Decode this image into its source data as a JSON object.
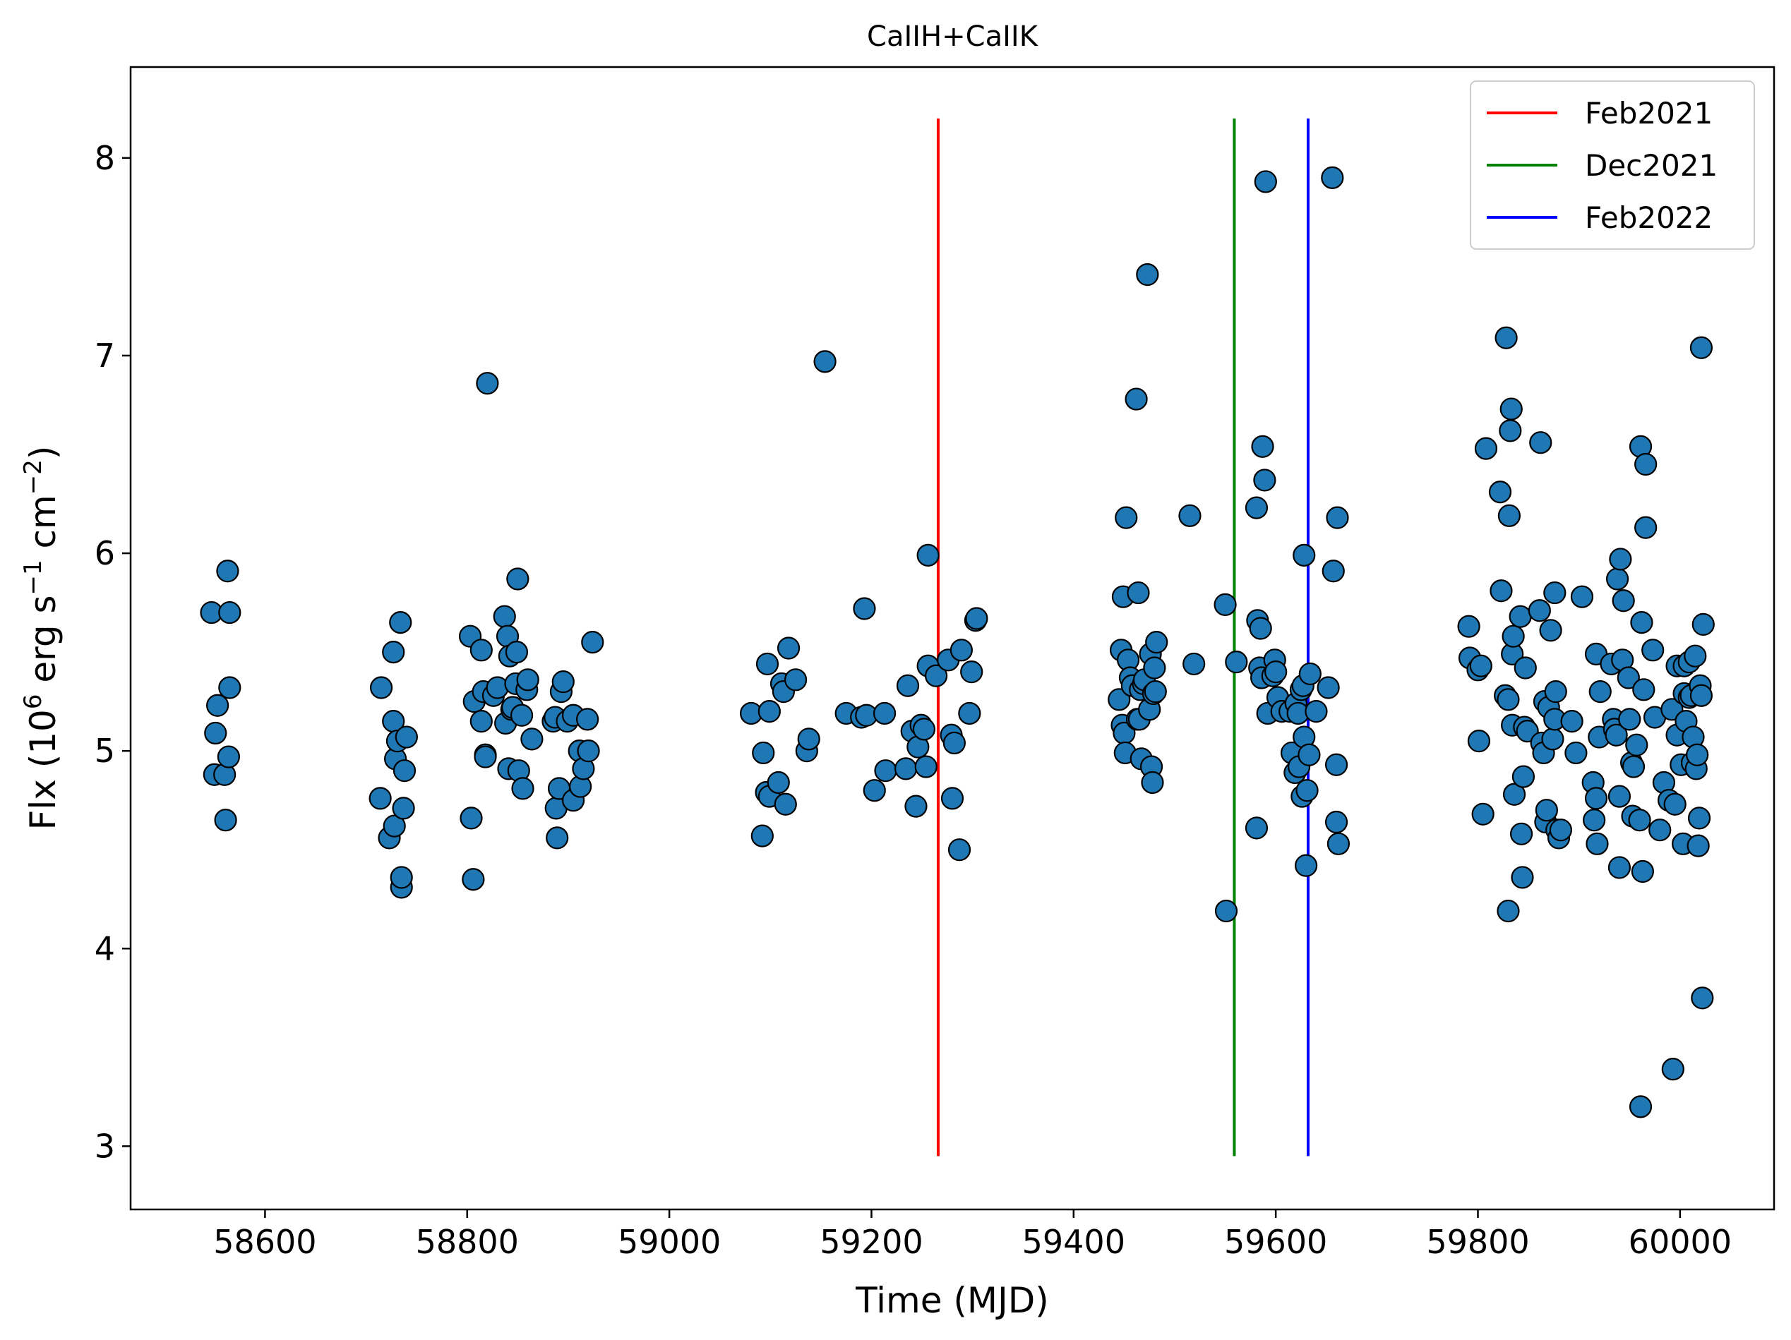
{
  "chart_data": {
    "type": "scatter",
    "title": "CaIIH+CaIIK",
    "xlabel": "Time (MJD)",
    "ylabel_parts": [
      "Flx (10",
      "6",
      " erg s",
      "−1",
      " cm",
      "−2",
      ")"
    ],
    "xlim": [
      58467,
      60093
    ],
    "ylim": [
      2.68,
      8.46
    ],
    "xticks": [
      58600,
      58800,
      59000,
      59200,
      59400,
      59600,
      59800,
      60000
    ],
    "yticks": [
      3,
      4,
      5,
      6,
      7,
      8
    ],
    "xtick_labels": [
      "58600",
      "58800",
      "59000",
      "59200",
      "59400",
      "59600",
      "59800",
      "60000"
    ],
    "ytick_labels": [
      "3",
      "4",
      "5",
      "6",
      "7",
      "8"
    ],
    "grid": false,
    "legend_position": "top-right",
    "marker_color": "#1f77b4",
    "vlines": [
      {
        "name": "Feb2021",
        "x": 59266,
        "ymin": 2.95,
        "ymax": 8.2,
        "color": "#ff0000"
      },
      {
        "name": "Dec2021",
        "x": 59559,
        "ymin": 2.95,
        "ymax": 8.2,
        "color": "#008000"
      },
      {
        "name": "Feb2022",
        "x": 59632,
        "ymin": 2.95,
        "ymax": 8.2,
        "color": "#0000ff"
      }
    ],
    "points": [
      [
        58547,
        5.7
      ],
      [
        58550,
        4.88
      ],
      [
        58553,
        5.23
      ],
      [
        58551,
        5.09
      ],
      [
        58560,
        4.88
      ],
      [
        58563,
        5.91
      ],
      [
        58565,
        5.7
      ],
      [
        58565,
        5.32
      ],
      [
        58564,
        4.97
      ],
      [
        58561,
        4.65
      ],
      [
        58715,
        5.32
      ],
      [
        58714,
        4.76
      ],
      [
        58723,
        4.56
      ],
      [
        58727,
        5.5
      ],
      [
        58727,
        5.15
      ],
      [
        58728,
        4.62
      ],
      [
        58729,
        4.96
      ],
      [
        58731,
        5.05
      ],
      [
        58734,
        5.65
      ],
      [
        58735,
        4.31
      ],
      [
        58735,
        4.36
      ],
      [
        58737,
        4.71
      ],
      [
        58738,
        4.9
      ],
      [
        58740,
        5.07
      ],
      [
        58803,
        5.58
      ],
      [
        58804,
        4.66
      ],
      [
        58806,
        4.35
      ],
      [
        58807,
        5.25
      ],
      [
        58814,
        5.51
      ],
      [
        58814,
        5.15
      ],
      [
        58816,
        5.3
      ],
      [
        58818,
        4.98
      ],
      [
        58818,
        4.97
      ],
      [
        58820,
        6.86
      ],
      [
        58826,
        5.28
      ],
      [
        58830,
        5.32
      ],
      [
        58837,
        5.68
      ],
      [
        58838,
        5.14
      ],
      [
        58840,
        5.58
      ],
      [
        58841,
        4.91
      ],
      [
        58842,
        5.48
      ],
      [
        58844,
        5.21
      ],
      [
        58845,
        5.22
      ],
      [
        58848,
        5.34
      ],
      [
        58849,
        5.5
      ],
      [
        58850,
        5.87
      ],
      [
        58851,
        4.9
      ],
      [
        58854,
        5.18
      ],
      [
        58855,
        4.81
      ],
      [
        58859,
        5.31
      ],
      [
        58860,
        5.36
      ],
      [
        58864,
        5.06
      ],
      [
        58885,
        5.15
      ],
      [
        58887,
        5.17
      ],
      [
        58888,
        4.71
      ],
      [
        58889,
        4.56
      ],
      [
        58891,
        4.81
      ],
      [
        58893,
        5.3
      ],
      [
        58895,
        5.35
      ],
      [
        58899,
        5.15
      ],
      [
        58905,
        4.75
      ],
      [
        58905,
        5.18
      ],
      [
        58911,
        5.0
      ],
      [
        58912,
        4.82
      ],
      [
        58915,
        4.91
      ],
      [
        58919,
        5.16
      ],
      [
        58920,
        5.0
      ],
      [
        58924,
        5.55
      ],
      [
        59081,
        5.19
      ],
      [
        59092,
        4.57
      ],
      [
        59093,
        4.99
      ],
      [
        59096,
        4.79
      ],
      [
        59097,
        5.44
      ],
      [
        59099,
        4.77
      ],
      [
        59099,
        5.2
      ],
      [
        59108,
        4.84
      ],
      [
        59111,
        5.34
      ],
      [
        59113,
        5.3
      ],
      [
        59115,
        4.73
      ],
      [
        59118,
        5.52
      ],
      [
        59125,
        5.36
      ],
      [
        59136,
        5.0
      ],
      [
        59138,
        5.06
      ],
      [
        59154,
        6.97
      ],
      [
        59175,
        5.19
      ],
      [
        59190,
        5.17
      ],
      [
        59193,
        5.72
      ],
      [
        59195,
        5.18
      ],
      [
        59203,
        4.8
      ],
      [
        59213,
        5.19
      ],
      [
        59214,
        4.9
      ],
      [
        59234,
        4.91
      ],
      [
        59236,
        5.33
      ],
      [
        59240,
        5.1
      ],
      [
        59244,
        4.72
      ],
      [
        59246,
        5.02
      ],
      [
        59249,
        5.13
      ],
      [
        59252,
        5.11
      ],
      [
        59254,
        4.92
      ],
      [
        59256,
        5.43
      ],
      [
        59256,
        5.99
      ],
      [
        59264,
        5.38
      ],
      [
        59276,
        5.46
      ],
      [
        59279,
        5.08
      ],
      [
        59280,
        4.76
      ],
      [
        59282,
        5.04
      ],
      [
        59287,
        4.5
      ],
      [
        59289,
        5.51
      ],
      [
        59297,
        5.19
      ],
      [
        59299,
        5.4
      ],
      [
        59303,
        5.66
      ],
      [
        59304,
        5.67
      ],
      [
        59445,
        5.26
      ],
      [
        59447,
        5.51
      ],
      [
        59448,
        5.13
      ],
      [
        59449,
        5.78
      ],
      [
        59450,
        5.09
      ],
      [
        59451,
        4.99
      ],
      [
        59452,
        6.18
      ],
      [
        59454,
        5.46
      ],
      [
        59456,
        5.37
      ],
      [
        59458,
        5.33
      ],
      [
        59462,
        6.78
      ],
      [
        59463,
        5.16
      ],
      [
        59464,
        5.8
      ],
      [
        59465,
        5.16
      ],
      [
        59466,
        5.31
      ],
      [
        59467,
        4.96
      ],
      [
        59469,
        5.34
      ],
      [
        59470,
        5.36
      ],
      [
        59473,
        7.41
      ],
      [
        59475,
        5.21
      ],
      [
        59476,
        5.49
      ],
      [
        59477,
        4.92
      ],
      [
        59478,
        4.84
      ],
      [
        59479,
        5.29
      ],
      [
        59480,
        5.42
      ],
      [
        59481,
        5.3
      ],
      [
        59482,
        5.55
      ],
      [
        59515,
        6.19
      ],
      [
        59519,
        5.44
      ],
      [
        59550,
        5.74
      ],
      [
        59551,
        4.19
      ],
      [
        59561,
        5.45
      ],
      [
        59581,
        6.23
      ],
      [
        59581,
        4.61
      ],
      [
        59582,
        5.66
      ],
      [
        59584,
        5.42
      ],
      [
        59585,
        5.62
      ],
      [
        59586,
        5.37
      ],
      [
        59587,
        6.54
      ],
      [
        59589,
        6.37
      ],
      [
        59590,
        7.88
      ],
      [
        59592,
        5.19
      ],
      [
        59597,
        5.38
      ],
      [
        59599,
        5.46
      ],
      [
        59600,
        5.4
      ],
      [
        59602,
        5.27
      ],
      [
        59606,
        5.2
      ],
      [
        59614,
        5.2
      ],
      [
        59616,
        4.99
      ],
      [
        59619,
        4.89
      ],
      [
        59620,
        5.24
      ],
      [
        59622,
        5.19
      ],
      [
        59623,
        4.92
      ],
      [
        59625,
        5.31
      ],
      [
        59626,
        4.77
      ],
      [
        59627,
        5.33
      ],
      [
        59628,
        5.99
      ],
      [
        59628,
        5.07
      ],
      [
        59630,
        4.42
      ],
      [
        59631,
        4.8
      ],
      [
        59633,
        4.98
      ],
      [
        59634,
        5.39
      ],
      [
        59640,
        5.2
      ],
      [
        59652,
        5.32
      ],
      [
        59656,
        7.9
      ],
      [
        59657,
        5.91
      ],
      [
        59660,
        4.64
      ],
      [
        59660,
        4.93
      ],
      [
        59661,
        6.18
      ],
      [
        59662,
        4.53
      ],
      [
        59791,
        5.63
      ],
      [
        59792,
        5.47
      ],
      [
        59800,
        5.41
      ],
      [
        59801,
        5.05
      ],
      [
        59803,
        5.43
      ],
      [
        59805,
        4.68
      ],
      [
        59808,
        6.53
      ],
      [
        59822,
        6.31
      ],
      [
        59823,
        5.81
      ],
      [
        59827,
        5.28
      ],
      [
        59828,
        7.09
      ],
      [
        59830,
        4.19
      ],
      [
        59830,
        5.26
      ],
      [
        59831,
        6.19
      ],
      [
        59832,
        6.62
      ],
      [
        59833,
        6.73
      ],
      [
        59834,
        5.49
      ],
      [
        59834,
        5.13
      ],
      [
        59835,
        5.58
      ],
      [
        59836,
        4.78
      ],
      [
        59842,
        5.68
      ],
      [
        59843,
        4.58
      ],
      [
        59844,
        4.36
      ],
      [
        59845,
        4.87
      ],
      [
        59846,
        5.12
      ],
      [
        59847,
        5.42
      ],
      [
        59849,
        5.1
      ],
      [
        59861,
        5.71
      ],
      [
        59862,
        6.56
      ],
      [
        59863,
        5.04
      ],
      [
        59865,
        4.99
      ],
      [
        59866,
        5.25
      ],
      [
        59867,
        4.64
      ],
      [
        59868,
        4.7
      ],
      [
        59870,
        5.22
      ],
      [
        59872,
        5.61
      ],
      [
        59874,
        5.06
      ],
      [
        59876,
        5.8
      ],
      [
        59876,
        5.16
      ],
      [
        59877,
        5.3
      ],
      [
        59878,
        4.6
      ],
      [
        59880,
        4.56
      ],
      [
        59882,
        4.6
      ],
      [
        59893,
        5.15
      ],
      [
        59897,
        4.99
      ],
      [
        59903,
        5.78
      ],
      [
        59914,
        4.84
      ],
      [
        59915,
        4.65
      ],
      [
        59917,
        5.49
      ],
      [
        59917,
        4.76
      ],
      [
        59918,
        4.53
      ],
      [
        59920,
        5.07
      ],
      [
        59921,
        5.3
      ],
      [
        59932,
        5.44
      ],
      [
        59934,
        5.16
      ],
      [
        59935,
        5.11
      ],
      [
        59937,
        5.08
      ],
      [
        59938,
        5.87
      ],
      [
        59940,
        4.77
      ],
      [
        59940,
        4.41
      ],
      [
        59941,
        5.97
      ],
      [
        59943,
        5.46
      ],
      [
        59944,
        5.76
      ],
      [
        59949,
        5.37
      ],
      [
        59950,
        5.16
      ],
      [
        59952,
        4.94
      ],
      [
        59953,
        4.67
      ],
      [
        59954,
        4.92
      ],
      [
        59957,
        5.03
      ],
      [
        59960,
        4.65
      ],
      [
        59961,
        6.54
      ],
      [
        59961,
        3.2
      ],
      [
        59962,
        5.65
      ],
      [
        59963,
        4.39
      ],
      [
        59964,
        5.31
      ],
      [
        59966,
        6.13
      ],
      [
        59966,
        6.45
      ],
      [
        59973,
        5.51
      ],
      [
        59975,
        5.17
      ],
      [
        59980,
        4.6
      ],
      [
        59984,
        4.84
      ],
      [
        59989,
        4.75
      ],
      [
        59992,
        5.21
      ],
      [
        59993,
        3.39
      ],
      [
        59995,
        4.73
      ],
      [
        59997,
        5.43
      ],
      [
        59997,
        5.08
      ],
      [
        60001,
        4.93
      ],
      [
        60003,
        4.53
      ],
      [
        60004,
        5.29
      ],
      [
        60004,
        5.43
      ],
      [
        60006,
        5.15
      ],
      [
        60009,
        5.27
      ],
      [
        60009,
        5.45
      ],
      [
        60011,
        5.28
      ],
      [
        60012,
        4.94
      ],
      [
        60013,
        5.07
      ],
      [
        60015,
        5.48
      ],
      [
        60016,
        4.91
      ],
      [
        60017,
        4.98
      ],
      [
        60018,
        4.52
      ],
      [
        60019,
        4.66
      ],
      [
        60020,
        5.33
      ],
      [
        60021,
        5.28
      ],
      [
        60021,
        7.04
      ],
      [
        60022,
        3.75
      ],
      [
        60023,
        5.64
      ]
    ]
  }
}
